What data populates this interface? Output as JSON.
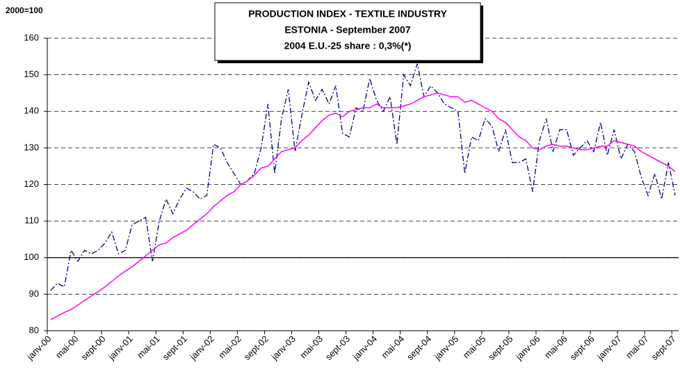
{
  "chart_data": {
    "type": "line",
    "title": [
      "PRODUCTION INDEX - TEXTILE INDUSTRY",
      "ESTONIA - September 2007",
      "2004 E.U.-25 share : 0,3%(*)"
    ],
    "y_label": "2000=100",
    "categories": [
      "janv-00",
      null,
      null,
      null,
      "mai-00",
      null,
      null,
      null,
      "sept-00",
      null,
      null,
      null,
      "janv-01",
      null,
      null,
      null,
      "mai-01",
      null,
      null,
      null,
      "sept-01",
      null,
      null,
      null,
      "janv-02",
      null,
      null,
      null,
      "mai-02",
      null,
      null,
      null,
      "sept-02",
      null,
      null,
      null,
      "janv-03",
      null,
      null,
      null,
      "mai-03",
      null,
      null,
      null,
      "sept-03",
      null,
      null,
      null,
      "janv-04",
      null,
      null,
      null,
      "mai-04",
      null,
      null,
      null,
      "sept-04",
      null,
      null,
      null,
      "janv-05",
      null,
      null,
      null,
      "mai-05",
      null,
      null,
      null,
      "sept-05",
      null,
      null,
      null,
      "janv-06",
      null,
      null,
      null,
      "mai-06",
      null,
      null,
      null,
      "sept-06",
      null,
      null,
      null,
      "janv-07",
      null,
      null,
      null,
      "mai-07",
      null,
      null,
      null,
      "sept-07"
    ],
    "series": [
      {
        "color": "#000080",
        "dash": "dashdot",
        "values": [
          91,
          93,
          92,
          102,
          99,
          102,
          101,
          102,
          104,
          107,
          101,
          102,
          109,
          110,
          111,
          99,
          110,
          116,
          112,
          116,
          119,
          118,
          116,
          117,
          131,
          130,
          126,
          123,
          120,
          121,
          123,
          130,
          142,
          123,
          138,
          146,
          129,
          139,
          148,
          143,
          146,
          142,
          147,
          134,
          133,
          141,
          140,
          149,
          143,
          140,
          144,
          131,
          150,
          147,
          153,
          144,
          147,
          145,
          142,
          141,
          140,
          123,
          133,
          132,
          138,
          136,
          129,
          135,
          126,
          126,
          127,
          118,
          132,
          138,
          129,
          135,
          135,
          128,
          130,
          132,
          129,
          137,
          128,
          135,
          127,
          131,
          129,
          122,
          117,
          123,
          116,
          126,
          117
        ]
      },
      {
        "color": "#ff00ff",
        "dash": "solid",
        "values": [
          83,
          84,
          85,
          85.8,
          87,
          88.3,
          89.5,
          90.7,
          92,
          93.5,
          95,
          96.3,
          97.5,
          99,
          100.5,
          102,
          103.5,
          104,
          105.5,
          106.5,
          107.5,
          109,
          110.5,
          112,
          114,
          115.5,
          117,
          118,
          120,
          121,
          122.5,
          124.5,
          125,
          127,
          129,
          129.5,
          130,
          132,
          133.5,
          135.5,
          137.5,
          139,
          139.5,
          138.5,
          140,
          140.5,
          141,
          141,
          142,
          141,
          141,
          141,
          141.5,
          142,
          143,
          144,
          144.5,
          145,
          144.5,
          144,
          144,
          142.5,
          143,
          142,
          141,
          140,
          138,
          137,
          135,
          133,
          132,
          130,
          129.5,
          130.5,
          131,
          130.5,
          130.5,
          130,
          129.5,
          129.5,
          130,
          130.5,
          130.5,
          132,
          131.5,
          131,
          130.5,
          129,
          128,
          127,
          126,
          125,
          123.5
        ]
      }
    ],
    "ylim": [
      80,
      160
    ],
    "yticks": [
      80,
      90,
      100,
      110,
      120,
      130,
      140,
      150,
      160
    ],
    "reference_line": 100,
    "grid": true
  }
}
